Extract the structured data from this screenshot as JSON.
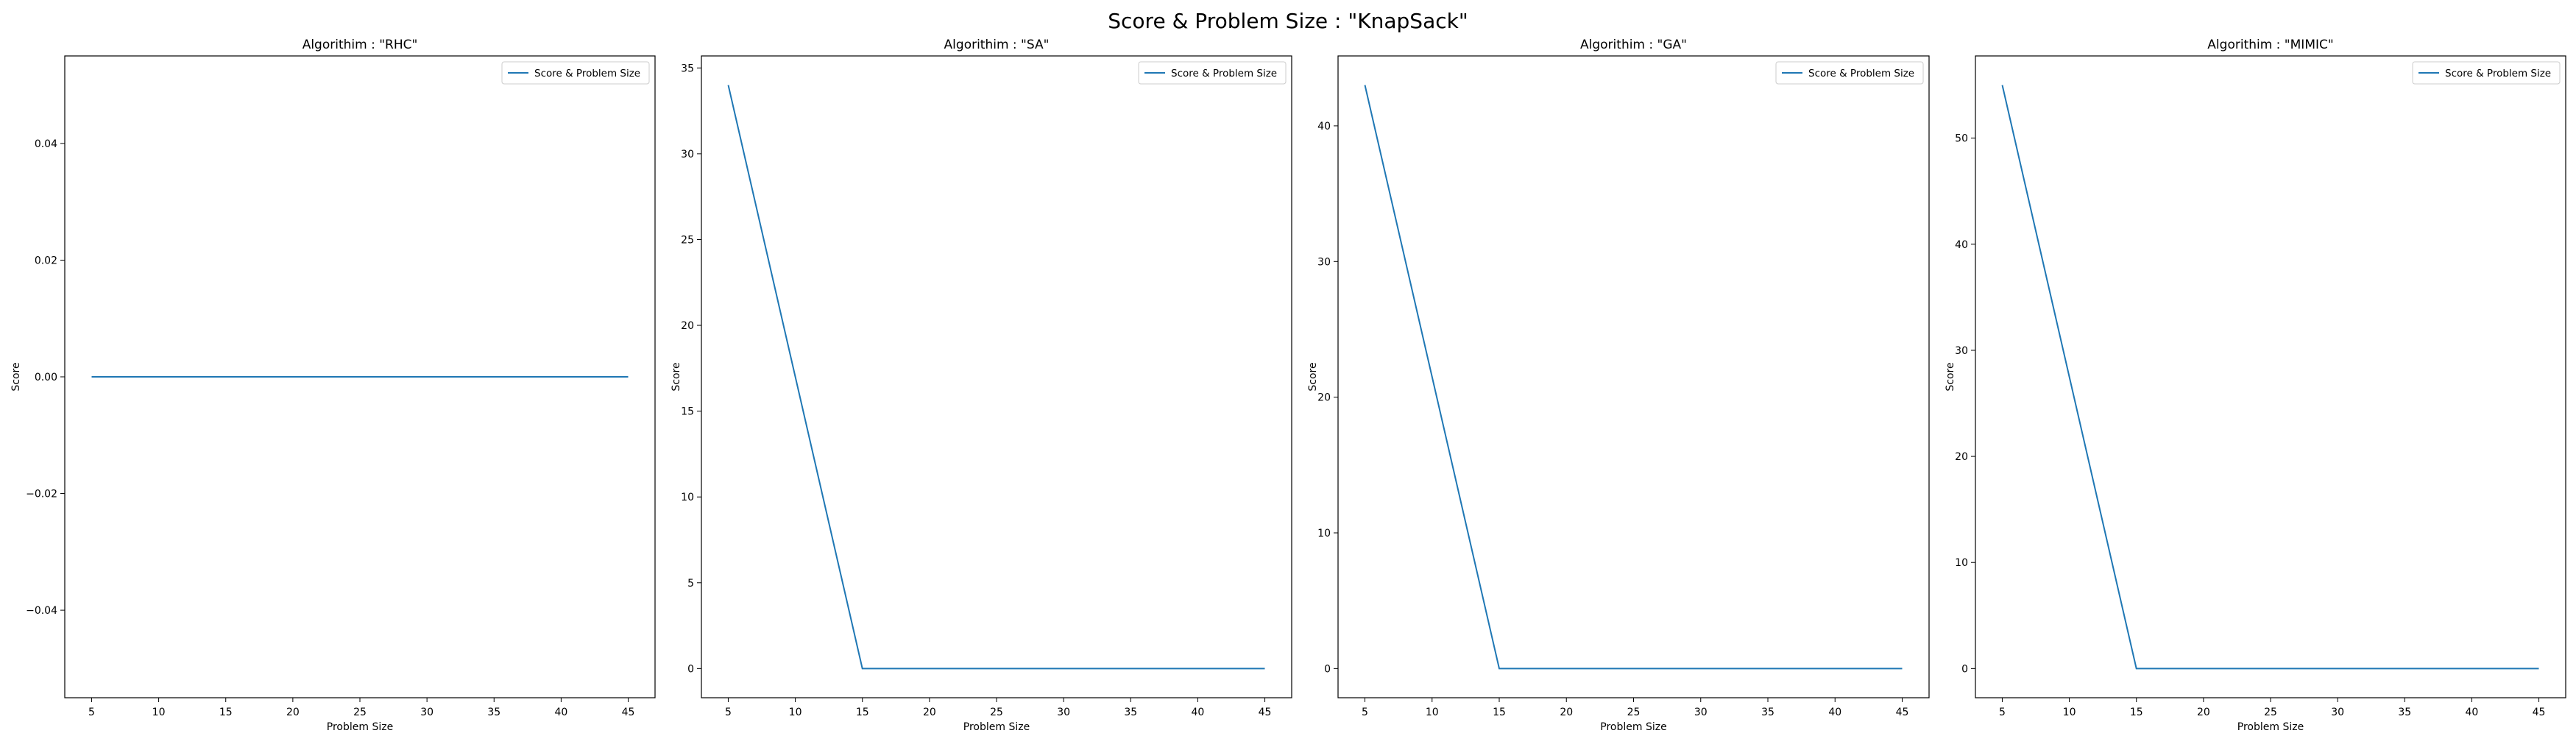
{
  "figure_title": "Score & Problem Size : \"KnapSack\"",
  "chart_data": [
    {
      "type": "line",
      "title": "Algorithim : \"RHC\"",
      "xlabel": "Problem Size",
      "ylabel": "Score",
      "x": [
        5,
        15,
        25,
        35,
        45
      ],
      "series": [
        {
          "name": "Score & Problem Size",
          "color": "#1f77b4",
          "values": [
            0,
            0,
            0,
            0,
            0
          ]
        }
      ],
      "xlim": [
        3,
        47
      ],
      "ylim": [
        -0.055,
        0.055
      ],
      "xticks": [
        5,
        10,
        15,
        20,
        25,
        30,
        35,
        40,
        45
      ],
      "yticks": [
        -0.04,
        -0.02,
        0.0,
        0.02,
        0.04
      ],
      "ytick_labels": [
        "−0.04",
        "−0.02",
        "0.00",
        "0.02",
        "0.04"
      ],
      "legend": "upper right",
      "grid": false
    },
    {
      "type": "line",
      "title": "Algorithim : \"SA\"",
      "xlabel": "Problem Size",
      "ylabel": "Score",
      "x": [
        5,
        15,
        25,
        35,
        45
      ],
      "series": [
        {
          "name": "Score & Problem Size",
          "color": "#1f77b4",
          "values": [
            34,
            0,
            0,
            0,
            0
          ]
        }
      ],
      "xlim": [
        3,
        47
      ],
      "ylim": [
        -1.7,
        35.7
      ],
      "xticks": [
        5,
        10,
        15,
        20,
        25,
        30,
        35,
        40,
        45
      ],
      "yticks": [
        0,
        5,
        10,
        15,
        20,
        25,
        30,
        35
      ],
      "ytick_labels": [
        "0",
        "5",
        "10",
        "15",
        "20",
        "25",
        "30",
        "35"
      ],
      "legend": "upper right",
      "grid": false
    },
    {
      "type": "line",
      "title": "Algorithim : \"GA\"",
      "xlabel": "Problem Size",
      "ylabel": "Score",
      "x": [
        5,
        15,
        25,
        35,
        45
      ],
      "series": [
        {
          "name": "Score & Problem Size",
          "color": "#1f77b4",
          "values": [
            43,
            0,
            0,
            0,
            0
          ]
        }
      ],
      "xlim": [
        3,
        47
      ],
      "ylim": [
        -2.15,
        45.15
      ],
      "xticks": [
        5,
        10,
        15,
        20,
        25,
        30,
        35,
        40,
        45
      ],
      "yticks": [
        0,
        10,
        20,
        30,
        40
      ],
      "ytick_labels": [
        "0",
        "10",
        "20",
        "30",
        "40"
      ],
      "legend": "upper right",
      "grid": false
    },
    {
      "type": "line",
      "title": "Algorithim : \"MIMIC\"",
      "xlabel": "Problem Size",
      "ylabel": "Score",
      "x": [
        5,
        15,
        25,
        35,
        45
      ],
      "series": [
        {
          "name": "Score & Problem Size",
          "color": "#1f77b4",
          "values": [
            55,
            0,
            0,
            0,
            0
          ]
        }
      ],
      "xlim": [
        3,
        47
      ],
      "ylim": [
        -2.75,
        57.75
      ],
      "xticks": [
        5,
        10,
        15,
        20,
        25,
        30,
        35,
        40,
        45
      ],
      "yticks": [
        0,
        10,
        20,
        30,
        40,
        50
      ],
      "ytick_labels": [
        "0",
        "10",
        "20",
        "30",
        "40",
        "50"
      ],
      "legend": "upper right",
      "grid": false
    }
  ]
}
